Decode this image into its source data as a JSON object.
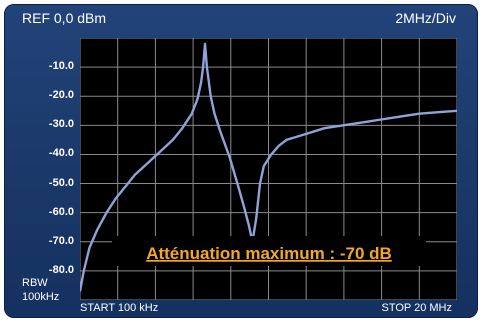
{
  "header": {
    "ref_label": "REF 0,0 dBm",
    "scale_label": "2MHz/Div"
  },
  "footer": {
    "rbw_label": "RBW",
    "rbw_value": "100kHz",
    "start_label": "START 100 kHz",
    "stop_label": "STOP 20 MHz"
  },
  "colors": {
    "frame": "#1e3f74",
    "trace": "#8fa3d6",
    "annotation": "#f5a623"
  },
  "chart_data": {
    "type": "line",
    "title": "",
    "xlabel": "",
    "ylabel": "",
    "xlim": [
      0.1,
      20
    ],
    "ylim": [
      -90,
      0
    ],
    "grid": true,
    "yticks": [
      "-10.0",
      "-20.0",
      "-30.0",
      "-40.0",
      "-50.0",
      "-60.0",
      "-70.0",
      "-80.0"
    ],
    "ytick_values": [
      -10,
      -20,
      -30,
      -40,
      -50,
      -60,
      -70,
      -80
    ],
    "annotation": "Atténuation maximum : -70 dB",
    "series": [
      {
        "x": [
          0.1,
          0.3,
          0.6,
          1,
          1.5,
          2,
          2.5,
          3,
          3.5,
          4,
          4.5,
          5,
          5.5,
          6,
          6.3,
          6.5,
          6.6,
          6.7,
          6.8,
          6.9,
          7.0,
          7.2,
          7.5,
          8,
          8.5,
          8.8,
          9.0,
          9.2,
          9.4,
          9.6,
          9.8,
          10.2,
          10.6,
          11,
          12,
          13,
          14,
          15,
          16,
          17,
          18,
          19,
          20
        ],
        "y": [
          -87,
          -80,
          -72,
          -66,
          -60,
          -55,
          -51,
          -47,
          -44,
          -41,
          -38,
          -35,
          -31,
          -26,
          -21,
          -15,
          -10,
          -2,
          -10,
          -15,
          -20,
          -26,
          -32,
          -41,
          -52,
          -59,
          -64,
          -70,
          -62,
          -50,
          -44,
          -40,
          -37,
          -35,
          -33,
          -31,
          -30,
          -29,
          -28,
          -27,
          -26,
          -25.5,
          -25
        ]
      }
    ]
  }
}
